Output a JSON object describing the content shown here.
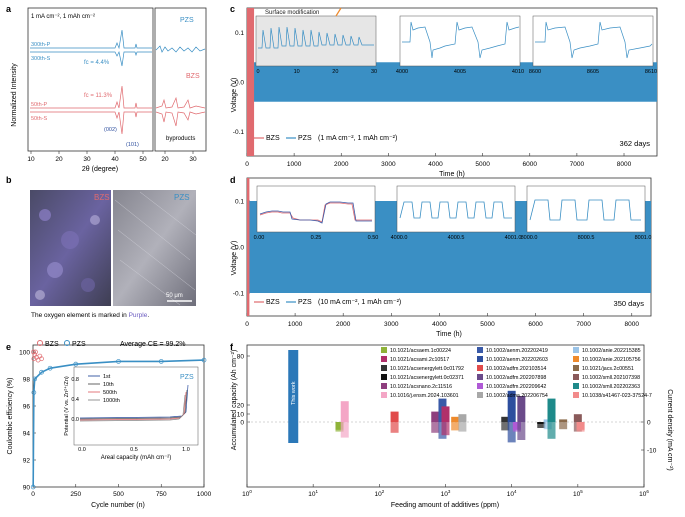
{
  "panels": {
    "a": {
      "letter": "a",
      "condition": "1 mA cm⁻², 1 mAh cm⁻²",
      "ylabel": "Normalized Intensity",
      "xlabel": "2θ (degree)",
      "xticks": [
        "10",
        "20",
        "30",
        "40",
        "50",
        "20",
        "30"
      ],
      "labels_pzs": {
        "name": "PZS",
        "p": "300th-P",
        "s": "300th-S",
        "fc": "fc = 4.4%"
      },
      "labels_bzs": {
        "name": "BZS",
        "p": "50th-P",
        "s": "50th-S",
        "fc": "fc = 11.3%",
        "hkl1": "(002)",
        "hkl2": "(101)",
        "byproducts": "byproducts"
      },
      "colors": {
        "pzs": "#3a8fc4",
        "bzs": "#e06a6f"
      }
    },
    "b": {
      "letter": "b",
      "left_label": "BZS",
      "right_label": "PZS",
      "scale": "50 μm",
      "caption_prefix": "The oxygen element is marked in ",
      "caption_highlight": "Purple",
      "caption_suffix": "."
    },
    "c": {
      "letter": "c",
      "ylabel": "Voltage (V)",
      "xlabel": "Time (h)",
      "annotation": "Surface modification",
      "days": "362 days",
      "legend": {
        "bzs": "BZS",
        "pzs": "PZS",
        "cond": "(1 mA cm⁻², 1 mAh cm⁻²)"
      },
      "yticks": [
        "0.1",
        "0.0",
        "-0.1"
      ],
      "xticks": [
        "0",
        "1000",
        "2000",
        "3000",
        "4000",
        "5000",
        "6000",
        "7000",
        "8000"
      ],
      "insets": [
        {
          "ticks": [
            "0",
            "10",
            "20",
            "30"
          ]
        },
        {
          "ticks": [
            "4000",
            "4005",
            "4010"
          ]
        },
        {
          "ticks": [
            "8600",
            "8605",
            "8610"
          ]
        }
      ]
    },
    "d": {
      "letter": "d",
      "ylabel": "Voltage (V)",
      "xlabel": "Time (h)",
      "days": "350 days",
      "legend": {
        "bzs": "BZS",
        "pzs": "PZS",
        "cond": "(10 mA cm⁻², 1 mAh cm⁻²)"
      },
      "yticks": [
        "0.1",
        "0.0",
        "-0.1"
      ],
      "xticks": [
        "0",
        "1000",
        "2000",
        "3000",
        "4000",
        "5000",
        "6000",
        "7000",
        "8000"
      ],
      "insets": [
        {
          "ticks": [
            "0.00",
            "0.25",
            "0.50"
          ]
        },
        {
          "ticks": [
            "4000.0",
            "4000.5",
            "4001.0"
          ]
        },
        {
          "ticks": [
            "8000.0",
            "8000.5",
            "8001.0"
          ]
        }
      ]
    },
    "e": {
      "letter": "e",
      "ylabel": "Coulombic efficiency (%)",
      "xlabel": "Cycle number (n)",
      "legend": {
        "bzs": "BZS",
        "pzs": "PZS"
      },
      "avg": "Average CE = 99.2%",
      "yticks": [
        "100",
        "98",
        "96",
        "94",
        "92",
        "90"
      ],
      "xticks": [
        "0",
        "250",
        "500",
        "750",
        "1000"
      ],
      "inset": {
        "ylabel": "Potential (V vs. Zn²⁺/Zn)",
        "xlabel": "Areal capacity (mAh cm⁻²)",
        "yticks": [
          "0.8",
          "0.4",
          "0.0"
        ],
        "xticks": [
          "0.0",
          "0.5",
          "1.0"
        ],
        "label": "PZS",
        "legend": [
          "1st",
          "10th",
          "500th",
          "1000th"
        ]
      }
    },
    "f": {
      "letter": "f",
      "ylabel_left": "Accumulated capacity (Ah cm⁻²)",
      "ylabel_right": "Current density (mA cm⁻²)",
      "xlabel": "Feeding amount of additives (ppm)",
      "this_work": "This work",
      "left_ticks": [
        "80",
        "20",
        "10",
        "0"
      ],
      "right_ticks": [
        "0",
        "-10"
      ],
      "legend": [
        {
          "text": "10.1021/acsaem.1c00224",
          "color": "#8fb339"
        },
        {
          "text": "10.1021/acsami.2c10517",
          "color": "#b0306a"
        },
        {
          "text": "10.1021/acsenergylett.0c01792",
          "color": "#333333"
        },
        {
          "text": "10.1021/acsenergylett.0c02371",
          "color": "#111111"
        },
        {
          "text": "10.1021/acsnano.2c11516",
          "color": "#8e3e7e"
        },
        {
          "text": "10.1016/j.ensm.2024.103601",
          "color": "#f4a6c6"
        },
        {
          "text": "10.1002/aenm.202202419",
          "color": "#3a5aa8"
        },
        {
          "text": "10.1002/aenm.202202603",
          "color": "#2d4e9e"
        },
        {
          "text": "10.1002/adfm.202103514",
          "color": "#e14b4b"
        },
        {
          "text": "10.1002/adfm.202207898",
          "color": "#6a4a8a"
        },
        {
          "text": "10.1002/adfm.202209642",
          "color": "#b05ad6"
        },
        {
          "text": "10.1002/adma.202206754",
          "color": "#a8a8a8"
        },
        {
          "text": "10.1002/anie.202215385",
          "color": "#9bc4e8"
        },
        {
          "text": "10.1002/anie.202105756",
          "color": "#ee8a2c"
        },
        {
          "text": "10.1021/jacs.2c00551",
          "color": "#8a6a4a"
        },
        {
          "text": "10.1002/smll.202107398",
          "color": "#8a5a5a"
        },
        {
          "text": "10.1002/smll.202202363",
          "color": "#1e8a8a"
        },
        {
          "text": "10.1038/s41467-023-37524-7",
          "color": "#f28b8b"
        }
      ]
    }
  },
  "chart_data": [
    {
      "type": "line",
      "panel": "c",
      "series": [
        {
          "name": "BZS",
          "x": [
            0,
            150
          ],
          "y": [
            0.0,
            0.0
          ]
        },
        {
          "name": "PZS",
          "x": [
            0,
            8700
          ],
          "y": [
            0.0,
            0.0
          ]
        }
      ],
      "xlabel": "Time (h)",
      "ylabel": "Voltage (V)",
      "xlim": [
        0,
        8700
      ],
      "ylim": [
        -0.15,
        0.15
      ]
    },
    {
      "type": "line",
      "panel": "d",
      "series": [
        {
          "name": "BZS",
          "x": [
            0,
            50
          ],
          "y": [
            0.0,
            0.0
          ]
        },
        {
          "name": "PZS",
          "x": [
            0,
            8400
          ],
          "y": [
            0.0,
            0.0
          ]
        }
      ],
      "xlabel": "Time (h)",
      "ylabel": "Voltage (V)",
      "xlim": [
        0,
        8400
      ],
      "ylim": [
        -0.15,
        0.15
      ]
    },
    {
      "type": "scatter",
      "panel": "e",
      "series": [
        {
          "name": "BZS",
          "x": [
            2,
            5,
            10,
            15,
            20,
            30,
            40,
            50
          ],
          "y": [
            100,
            99.5,
            99.8,
            100,
            99.6,
            99.4,
            99.7,
            99.5
          ]
        },
        {
          "name": "PZS",
          "x": [
            1,
            5,
            10,
            50,
            100,
            250,
            500,
            750,
            1000
          ],
          "y": [
            90,
            97,
            98,
            98.5,
            98.8,
            99.1,
            99.3,
            99.3,
            99.4
          ]
        }
      ],
      "xlabel": "Cycle number (n)",
      "ylabel": "Coulombic efficiency (%)",
      "xlim": [
        0,
        1000
      ],
      "ylim": [
        90,
        100
      ]
    },
    {
      "type": "bar",
      "panel": "f",
      "series": [
        {
          "name": "This work",
          "x": [
            5
          ],
          "y": [
            90
          ]
        },
        {
          "name": "10.1021/acsaem.1c00224",
          "x": [
            25
          ],
          "y": [
            -3
          ]
        },
        {
          "name": "10.1016/j.ensm.2024.103601",
          "x": [
            30
          ],
          "y": [
            8
          ]
        },
        {
          "name": "10.1002/adfm.202103514",
          "x": [
            170
          ],
          "y": [
            4
          ]
        },
        {
          "name": "10.1021/acsnano.2c11516",
          "x": [
            700
          ],
          "y": [
            4
          ]
        },
        {
          "name": "10.1002/aenm.202202419",
          "x": [
            900
          ],
          "y": [
            9
          ]
        },
        {
          "name": "10.1021/acsami.2c10517",
          "x": [
            1000
          ],
          "y": [
            6
          ]
        },
        {
          "name": "10.1002/anie.202105756",
          "x": [
            1400
          ],
          "y": [
            2
          ]
        },
        {
          "name": "10.1002/adma.202206754",
          "x": [
            1800
          ],
          "y": [
            3
          ]
        },
        {
          "name": "10.1021/acsenergylett.0c01792",
          "x": [
            8000
          ],
          "y": [
            2
          ]
        },
        {
          "name": "10.1002/aenm.202202603",
          "x": [
            10000
          ],
          "y": [
            12
          ]
        },
        {
          "name": "10.1002/adfm.202209642",
          "x": [
            12000
          ],
          "y": [
            -3
          ]
        },
        {
          "name": "10.1002/adfm.202207898",
          "x": [
            14000
          ],
          "y": [
            10
          ]
        },
        {
          "name": "10.1021/acsenergylett.0c02371",
          "x": [
            28000
          ],
          "y": [
            0
          ]
        },
        {
          "name": "10.1002/anie.202215385",
          "x": [
            35000
          ],
          "y": [
            1
          ]
        },
        {
          "name": "10.1002/smll.202202363",
          "x": [
            40000
          ],
          "y": [
            9
          ]
        },
        {
          "name": "10.1021/jacs.2c00551",
          "x": [
            60000
          ],
          "y": [
            1
          ]
        },
        {
          "name": "10.1002/smll.202107398",
          "x": [
            100000
          ],
          "y": [
            3
          ]
        },
        {
          "name": "10.1038/s41467-023-37524-7",
          "x": [
            110000
          ],
          "y": [
            -3
          ]
        }
      ],
      "xlabel": "Feeding amount of additives (ppm)",
      "ylabel": "Accumulated capacity (Ah cm⁻²)",
      "xscale": "log",
      "xlim": [
        1,
        1000000
      ]
    }
  ]
}
